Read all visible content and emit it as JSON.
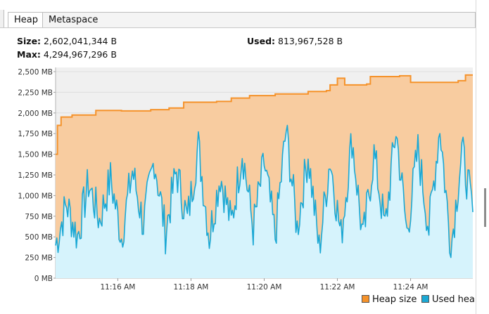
{
  "tabs": [
    {
      "label": "Heap",
      "active": true
    },
    {
      "label": "Metaspace",
      "active": false
    }
  ],
  "stats": {
    "size_label": "Size:",
    "size_value": "2,602,041,344 B",
    "used_label": "Used:",
    "used_value": "813,967,528 B",
    "max_label": "Max:",
    "max_value": "4,294,967,296 B"
  },
  "colors": {
    "heap_size": "#f5922a",
    "heap_size_fill": "#f8cca0",
    "used_heap": "#1ba8d4",
    "used_heap_fill": "#d6f3fc",
    "plot_bg": "#f0f0f0",
    "grid": "#dedede"
  },
  "chart_data": {
    "type": "area",
    "xlabel": "",
    "ylabel": "",
    "ylim": [
      0,
      2500
    ],
    "y_unit": "MB",
    "yticks": [
      "0 MB",
      "250 MB",
      "500 MB",
      "750 MB",
      "1,000 MB",
      "1,250 MB",
      "1,500 MB",
      "1,750 MB",
      "2,000 MB",
      "2,250 MB",
      "2,500 MB"
    ],
    "y_tick_values": [
      0,
      250,
      500,
      750,
      1000,
      1250,
      1500,
      1750,
      2000,
      2250,
      2500
    ],
    "xlim_minutes": [
      0,
      11.4
    ],
    "xticks": [
      {
        "label": "11:16 AM",
        "minute": 1.7
      },
      {
        "label": "11:18 AM",
        "minute": 3.7
      },
      {
        "label": "11:20 AM",
        "minute": 5.7
      },
      {
        "label": "11:22 AM",
        "minute": 7.7
      },
      {
        "label": "11:24 AM",
        "minute": 9.7
      }
    ],
    "grid": true,
    "legend_position": "bottom-right",
    "series": [
      {
        "name": "Heap size",
        "kind": "step",
        "points": [
          [
            0,
            1500
          ],
          [
            0.05,
            1850
          ],
          [
            0.15,
            1950
          ],
          [
            0.45,
            1975
          ],
          [
            1.1,
            2030
          ],
          [
            1.8,
            2025
          ],
          [
            2.6,
            2040
          ],
          [
            3.1,
            2060
          ],
          [
            3.5,
            2130
          ],
          [
            4.4,
            2140
          ],
          [
            4.8,
            2180
          ],
          [
            5.3,
            2210
          ],
          [
            6.0,
            2230
          ],
          [
            6.9,
            2260
          ],
          [
            7.4,
            2270
          ],
          [
            7.5,
            2340
          ],
          [
            7.7,
            2420
          ],
          [
            7.9,
            2340
          ],
          [
            8.5,
            2350
          ],
          [
            8.6,
            2440
          ],
          [
            9.4,
            2450
          ],
          [
            9.7,
            2370
          ],
          [
            11.0,
            2390
          ],
          [
            11.2,
            2460
          ],
          [
            11.4,
            2460
          ]
        ]
      },
      {
        "name": "Used heap",
        "kind": "noise",
        "points": [
          [
            0,
            400
          ],
          [
            0.3,
            900
          ],
          [
            0.6,
            500
          ],
          [
            0.9,
            1150
          ],
          [
            1.2,
            700
          ],
          [
            1.5,
            1200
          ],
          [
            1.8,
            500
          ],
          [
            2.1,
            1300
          ],
          [
            2.4,
            650
          ],
          [
            2.7,
            1450
          ],
          [
            3.0,
            550
          ],
          [
            3.3,
            1300
          ],
          [
            3.6,
            700
          ],
          [
            3.9,
            1600
          ],
          [
            4.2,
            500
          ],
          [
            4.5,
            1250
          ],
          [
            4.8,
            650
          ],
          [
            5.1,
            1550
          ],
          [
            5.4,
            600
          ],
          [
            5.7,
            1400
          ],
          [
            6.0,
            500
          ],
          [
            6.3,
            1800
          ],
          [
            6.6,
            600
          ],
          [
            6.9,
            1500
          ],
          [
            7.2,
            350
          ],
          [
            7.5,
            1450
          ],
          [
            7.8,
            500
          ],
          [
            8.1,
            1700
          ],
          [
            8.4,
            450
          ],
          [
            8.7,
            1500
          ],
          [
            9.0,
            600
          ],
          [
            9.3,
            1800
          ],
          [
            9.6,
            550
          ],
          [
            9.9,
            1550
          ],
          [
            10.2,
            600
          ],
          [
            10.5,
            1850
          ],
          [
            10.8,
            350
          ],
          [
            11.1,
            1550
          ],
          [
            11.4,
            800
          ]
        ]
      }
    ]
  },
  "legend": [
    {
      "label": "Heap size",
      "color": "#f5922a"
    },
    {
      "label": "Used heap",
      "color": "#1ba8d4"
    }
  ]
}
